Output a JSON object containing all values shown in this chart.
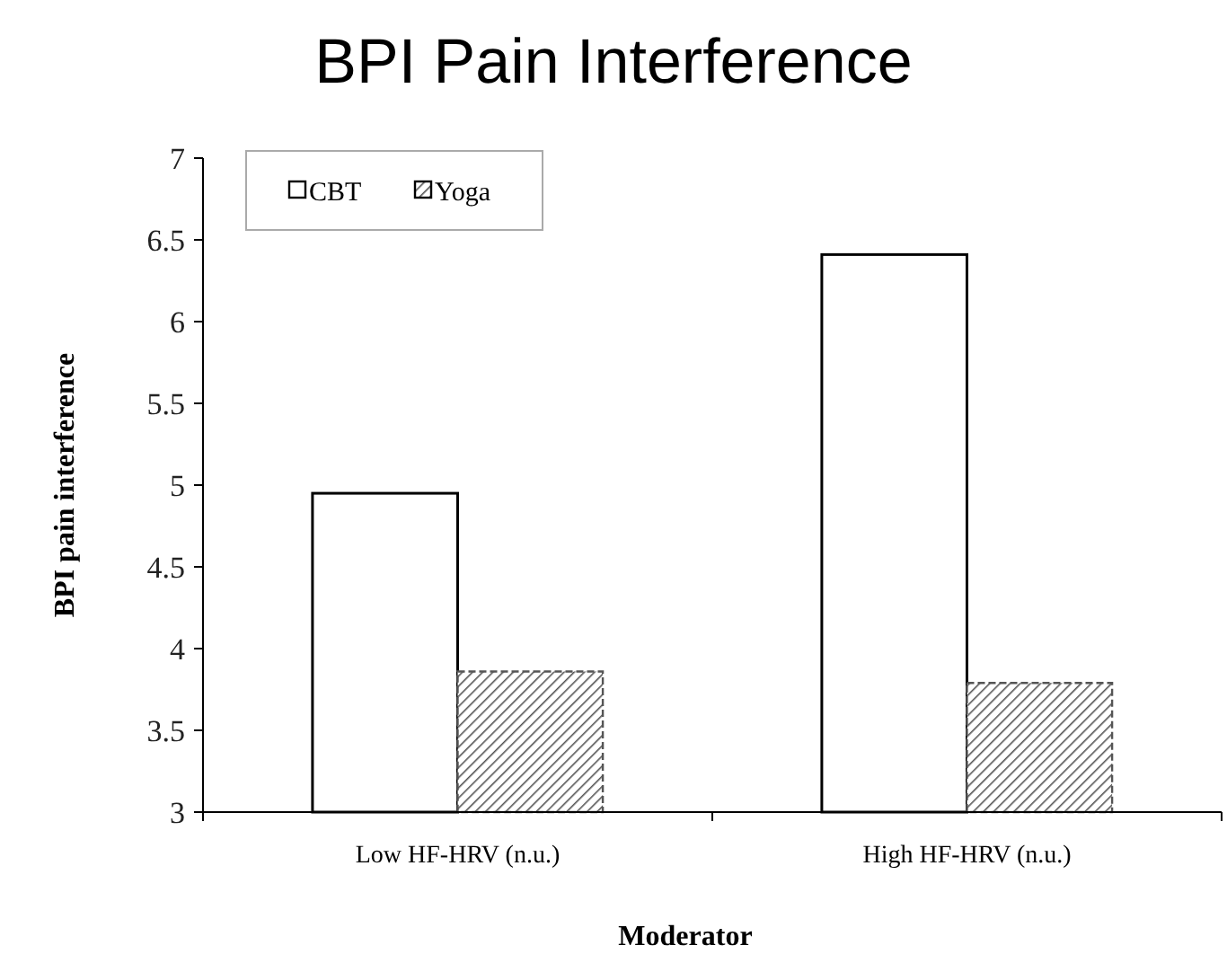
{
  "chart_data": {
    "type": "bar",
    "title": "BPI Pain Interference",
    "xlabel": "Moderator",
    "ylabel": "BPI pain interference",
    "categories": [
      "Low HF-HRV (n.u.)",
      "High HF-HRV (n.u.)"
    ],
    "series": [
      {
        "name": "CBT",
        "color": "#ffffff",
        "values": [
          4.95,
          6.41
        ]
      },
      {
        "name": "Yoga",
        "color": "#555555",
        "values": [
          3.86,
          3.79
        ]
      }
    ],
    "ylim": [
      3,
      7
    ],
    "yticks": [
      3,
      3.5,
      4,
      4.5,
      5,
      5.5,
      6,
      6.5,
      7
    ],
    "grid": false,
    "legend": "top left"
  }
}
